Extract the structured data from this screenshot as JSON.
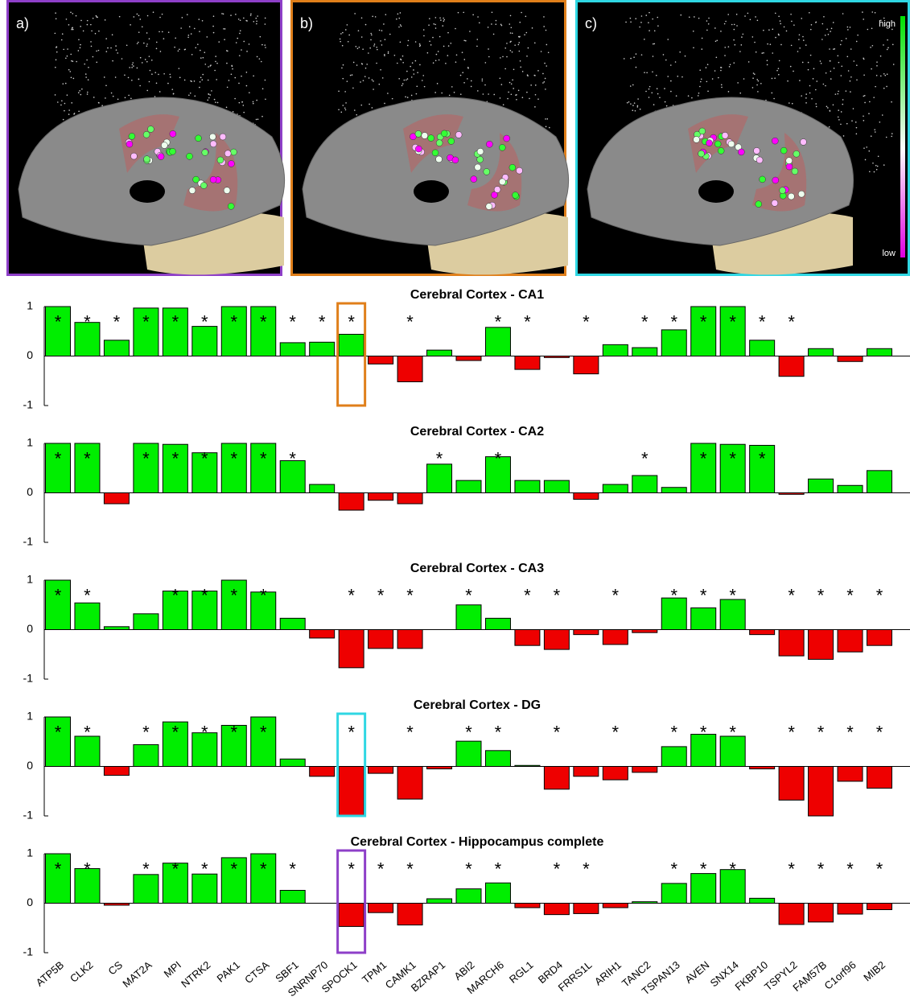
{
  "panels": [
    {
      "label": "a)",
      "color": "#8e3fc8"
    },
    {
      "label": "b)",
      "color": "#e07f1a"
    },
    {
      "label": "c)",
      "color": "#2fd7e3",
      "colorbar": {
        "high": "high",
        "low": "low"
      }
    }
  ],
  "chart_data": [
    {
      "type": "bar",
      "title": "Cerebral Cortex - CA1",
      "ylim": [
        -1,
        1
      ],
      "yticks": [
        -1,
        0,
        1
      ],
      "pos_color": "#00ee00",
      "neg_color": "#ee0000",
      "values": [
        1,
        0.68,
        0.32,
        0.97,
        0.97,
        0.6,
        1,
        1,
        0.27,
        0.28,
        0.44,
        -0.16,
        -0.52,
        0.12,
        -0.09,
        0.58,
        -0.27,
        -0.03,
        -0.36,
        0.23,
        0.17,
        0.53,
        1,
        1,
        0.32,
        -0.41,
        0.15,
        -0.11,
        0.15
      ],
      "stars": [
        "*",
        "*",
        "*",
        "*",
        "*",
        "*",
        "*",
        "*",
        "*",
        "*",
        "*",
        null,
        "*",
        null,
        null,
        "*",
        "*",
        null,
        "*",
        null,
        "*",
        "*",
        "*",
        "*",
        "*",
        "*",
        null,
        null,
        null
      ],
      "highlight": {
        "category": "SPOCK1",
        "color": "#e07f1a"
      }
    },
    {
      "type": "bar",
      "title": "Cerebral Cortex - CA2",
      "ylim": [
        -1,
        1
      ],
      "yticks": [
        -1,
        0,
        1
      ],
      "pos_color": "#00ee00",
      "neg_color": "#ee0000",
      "values": [
        1,
        1,
        -0.22,
        1,
        0.98,
        0.81,
        1,
        1,
        0.65,
        0.17,
        -0.35,
        -0.15,
        -0.22,
        0.58,
        0.25,
        0.73,
        0.25,
        0.25,
        -0.13,
        0.17,
        0.35,
        0.11,
        1,
        0.98,
        0.96,
        -0.03,
        0.28,
        0.15,
        0.45
      ],
      "stars": [
        "*",
        "*",
        null,
        "*",
        "*",
        "*",
        "*",
        "*",
        "*",
        null,
        null,
        null,
        null,
        "*",
        null,
        "*",
        null,
        null,
        null,
        null,
        "*",
        null,
        "*",
        "*",
        "*",
        null,
        null,
        null,
        null
      ]
    },
    {
      "type": "bar",
      "title": "Cerebral Cortex - CA3",
      "ylim": [
        -1,
        1
      ],
      "yticks": [
        -1,
        0,
        1
      ],
      "pos_color": "#00ee00",
      "neg_color": "#ee0000",
      "values": [
        1,
        0.54,
        0.06,
        0.32,
        0.78,
        0.78,
        1,
        0.76,
        0.23,
        -0.17,
        -0.77,
        -0.38,
        -0.38,
        0,
        0.5,
        0.23,
        -0.32,
        -0.4,
        -0.1,
        -0.3,
        -0.06,
        0.64,
        0.44,
        0.61,
        -0.1,
        -0.53,
        -0.6,
        -0.45,
        -0.32
      ],
      "stars": [
        "*",
        "*",
        null,
        null,
        "*",
        "*",
        "*",
        "*",
        null,
        null,
        "*",
        "*",
        "*",
        null,
        "*",
        null,
        "*",
        "*",
        null,
        "*",
        null,
        "*",
        "*",
        "*",
        null,
        "*",
        "*",
        "*",
        "*"
      ]
    },
    {
      "type": "bar",
      "title": "Cerebral Cortex - DG",
      "ylim": [
        -1,
        1
      ],
      "yticks": [
        -1,
        0,
        1
      ],
      "pos_color": "#00ee00",
      "neg_color": "#ee0000",
      "values": [
        1,
        0.61,
        -0.18,
        0.44,
        0.9,
        0.68,
        0.83,
        1,
        0.15,
        -0.2,
        -1,
        -0.14,
        -0.66,
        -0.05,
        0.51,
        0.32,
        0.02,
        -0.46,
        -0.2,
        -0.27,
        -0.12,
        0.4,
        0.65,
        0.61,
        -0.05,
        -0.68,
        -1,
        -0.3,
        -0.44
      ],
      "stars": [
        "*",
        "*",
        null,
        "*",
        "*",
        "*",
        "*",
        "*",
        null,
        null,
        "*",
        null,
        "*",
        null,
        "*",
        "*",
        null,
        "*",
        null,
        "*",
        null,
        "*",
        "*",
        "*",
        null,
        "*",
        "*",
        "*",
        "*"
      ],
      "highlight": {
        "category": "SPOCK1",
        "color": "#2fd7e3"
      }
    },
    {
      "type": "bar",
      "title": "Cerebral Cortex - Hippocampus  complete",
      "ylim": [
        -1,
        1
      ],
      "yticks": [
        -1,
        0,
        1
      ],
      "pos_color": "#00ee00",
      "neg_color": "#ee0000",
      "values": [
        1,
        0.7,
        -0.04,
        0.58,
        0.81,
        0.59,
        0.92,
        1,
        0.26,
        0,
        -0.47,
        -0.19,
        -0.44,
        0.09,
        0.29,
        0.41,
        -0.09,
        -0.23,
        -0.21,
        -0.09,
        0.03,
        0.4,
        0.6,
        0.68,
        0.1,
        -0.43,
        -0.38,
        -0.22,
        -0.13
      ],
      "stars": [
        "*",
        "*",
        null,
        "*",
        "*",
        "*",
        "*",
        "*",
        "*",
        null,
        "*",
        "*",
        "*",
        null,
        "*",
        "*",
        null,
        "*",
        "*",
        null,
        null,
        "*",
        "*",
        "*",
        null,
        "*",
        "*",
        "*",
        "*"
      ],
      "highlight": {
        "category": "SPOCK1",
        "color": "#8e3fc8"
      },
      "categories": [
        "ATP5B",
        "CLK2",
        "CS",
        "MAT2A",
        "MPI",
        "NTRK2",
        "PAK1",
        "CTSA",
        "SBF1",
        "SNRNP70",
        "SPOCK1",
        "TPM1",
        "CAMK1",
        "BZRAP1",
        "ABI2",
        "MARCH6",
        "RGL1",
        "BRD4",
        "FRRS1L",
        "ARIH1",
        "TANC2",
        "TSPAN13",
        "AVEN",
        "SNX14",
        "FKBP10",
        "TSPYL2",
        "FAM57B",
        "C1orf96",
        "MIB2"
      ]
    }
  ]
}
